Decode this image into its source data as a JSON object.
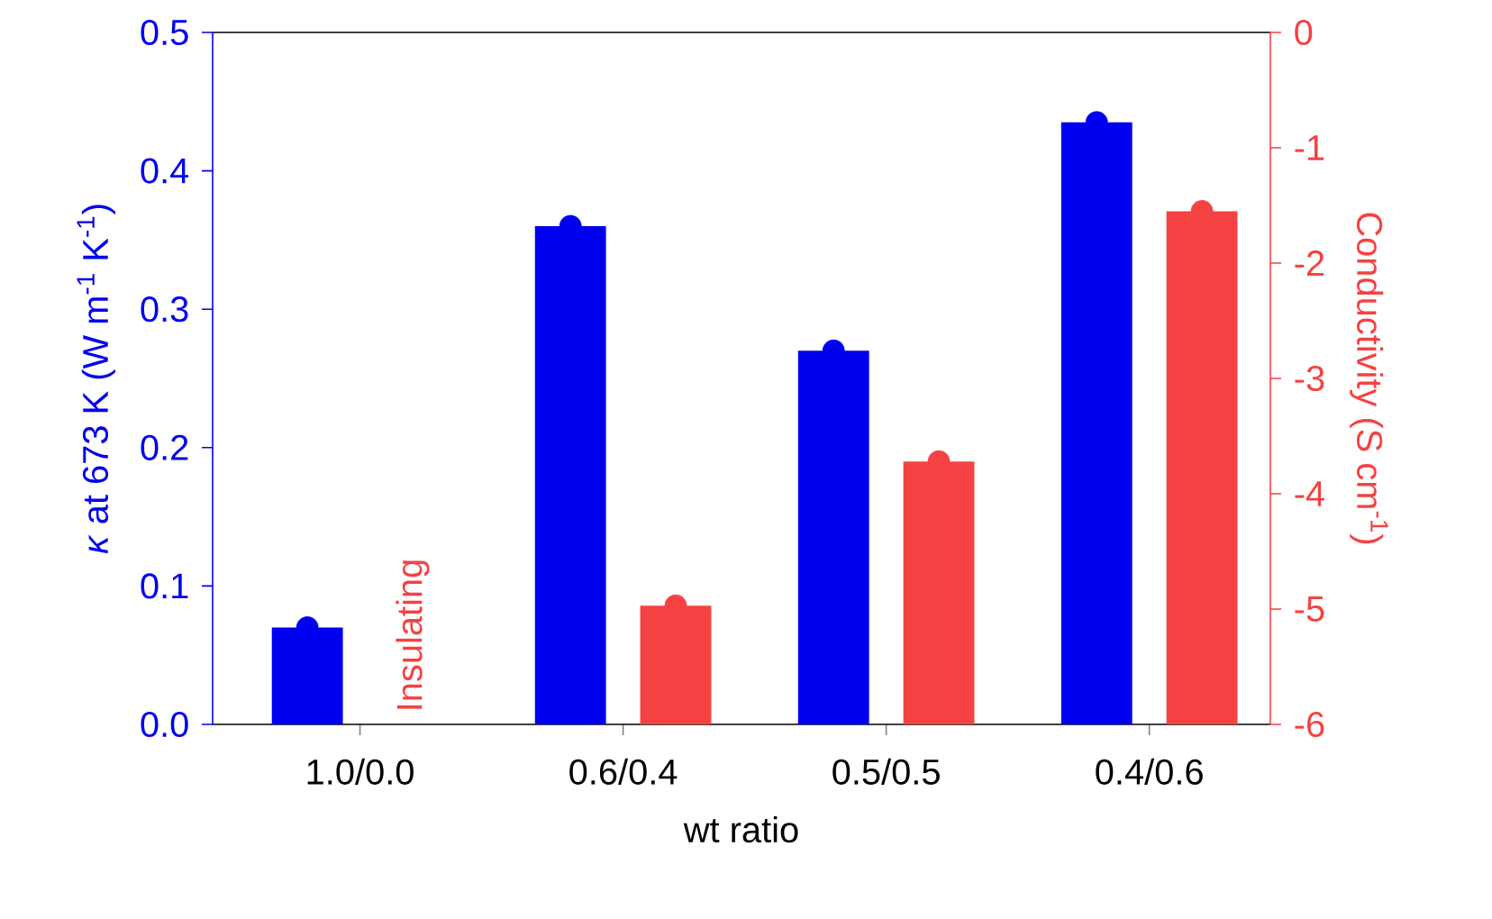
{
  "chart_data": {
    "type": "bar",
    "xlabel": "wt ratio",
    "ylabel": "*κ* at 673 K  (W m$^{-1}$  K$^{-1}$)",
    "y2label": "Conductivity  (S cm$^{-1}$)",
    "categories": [
      "1.0/0.0",
      "0.6/0.4",
      "0.5/0.5",
      "0.4/0.6"
    ],
    "series": [
      {
        "color": "#0000f0",
        "values": [
          0.07,
          0.36,
          0.27,
          0.435
        ]
      },
      {
        "color": "#f44242",
        "axis": "y2",
        "base": [
          null,
          -6,
          -6,
          -6
        ],
        "values": [
          null,
          1.03,
          2.28,
          4.45
        ]
      },
      {
        "type": "scatter",
        "marker": "circle",
        "color": "#0000f0",
        "values": [
          0.07,
          0.36,
          0.27,
          0.435
        ]
      },
      {
        "type": "scatter",
        "marker": "circle",
        "color": "#f44242",
        "axis": "y2",
        "values": [
          null,
          -4.97,
          -3.72,
          -1.55
        ]
      }
    ],
    "ylim": [
      0,
      0.5
    ],
    "yticks": [
      {
        "value": 0,
        "label": "0.0"
      },
      {
        "value": 0.1,
        "label": "0.1"
      },
      {
        "value": 0.2,
        "label": "0.2"
      },
      {
        "value": 0.3,
        "label": "0.3"
      },
      {
        "value": 0.4,
        "label": "0.4"
      },
      {
        "value": 0.5,
        "label": "0.5"
      }
    ],
    "y2lim": [
      -6,
      0
    ],
    "y2ticks": [
      -6,
      -5,
      -4,
      -3,
      -2,
      -1,
      0
    ],
    "grid": false,
    "annotations": [
      "Insulating"
    ]
  }
}
